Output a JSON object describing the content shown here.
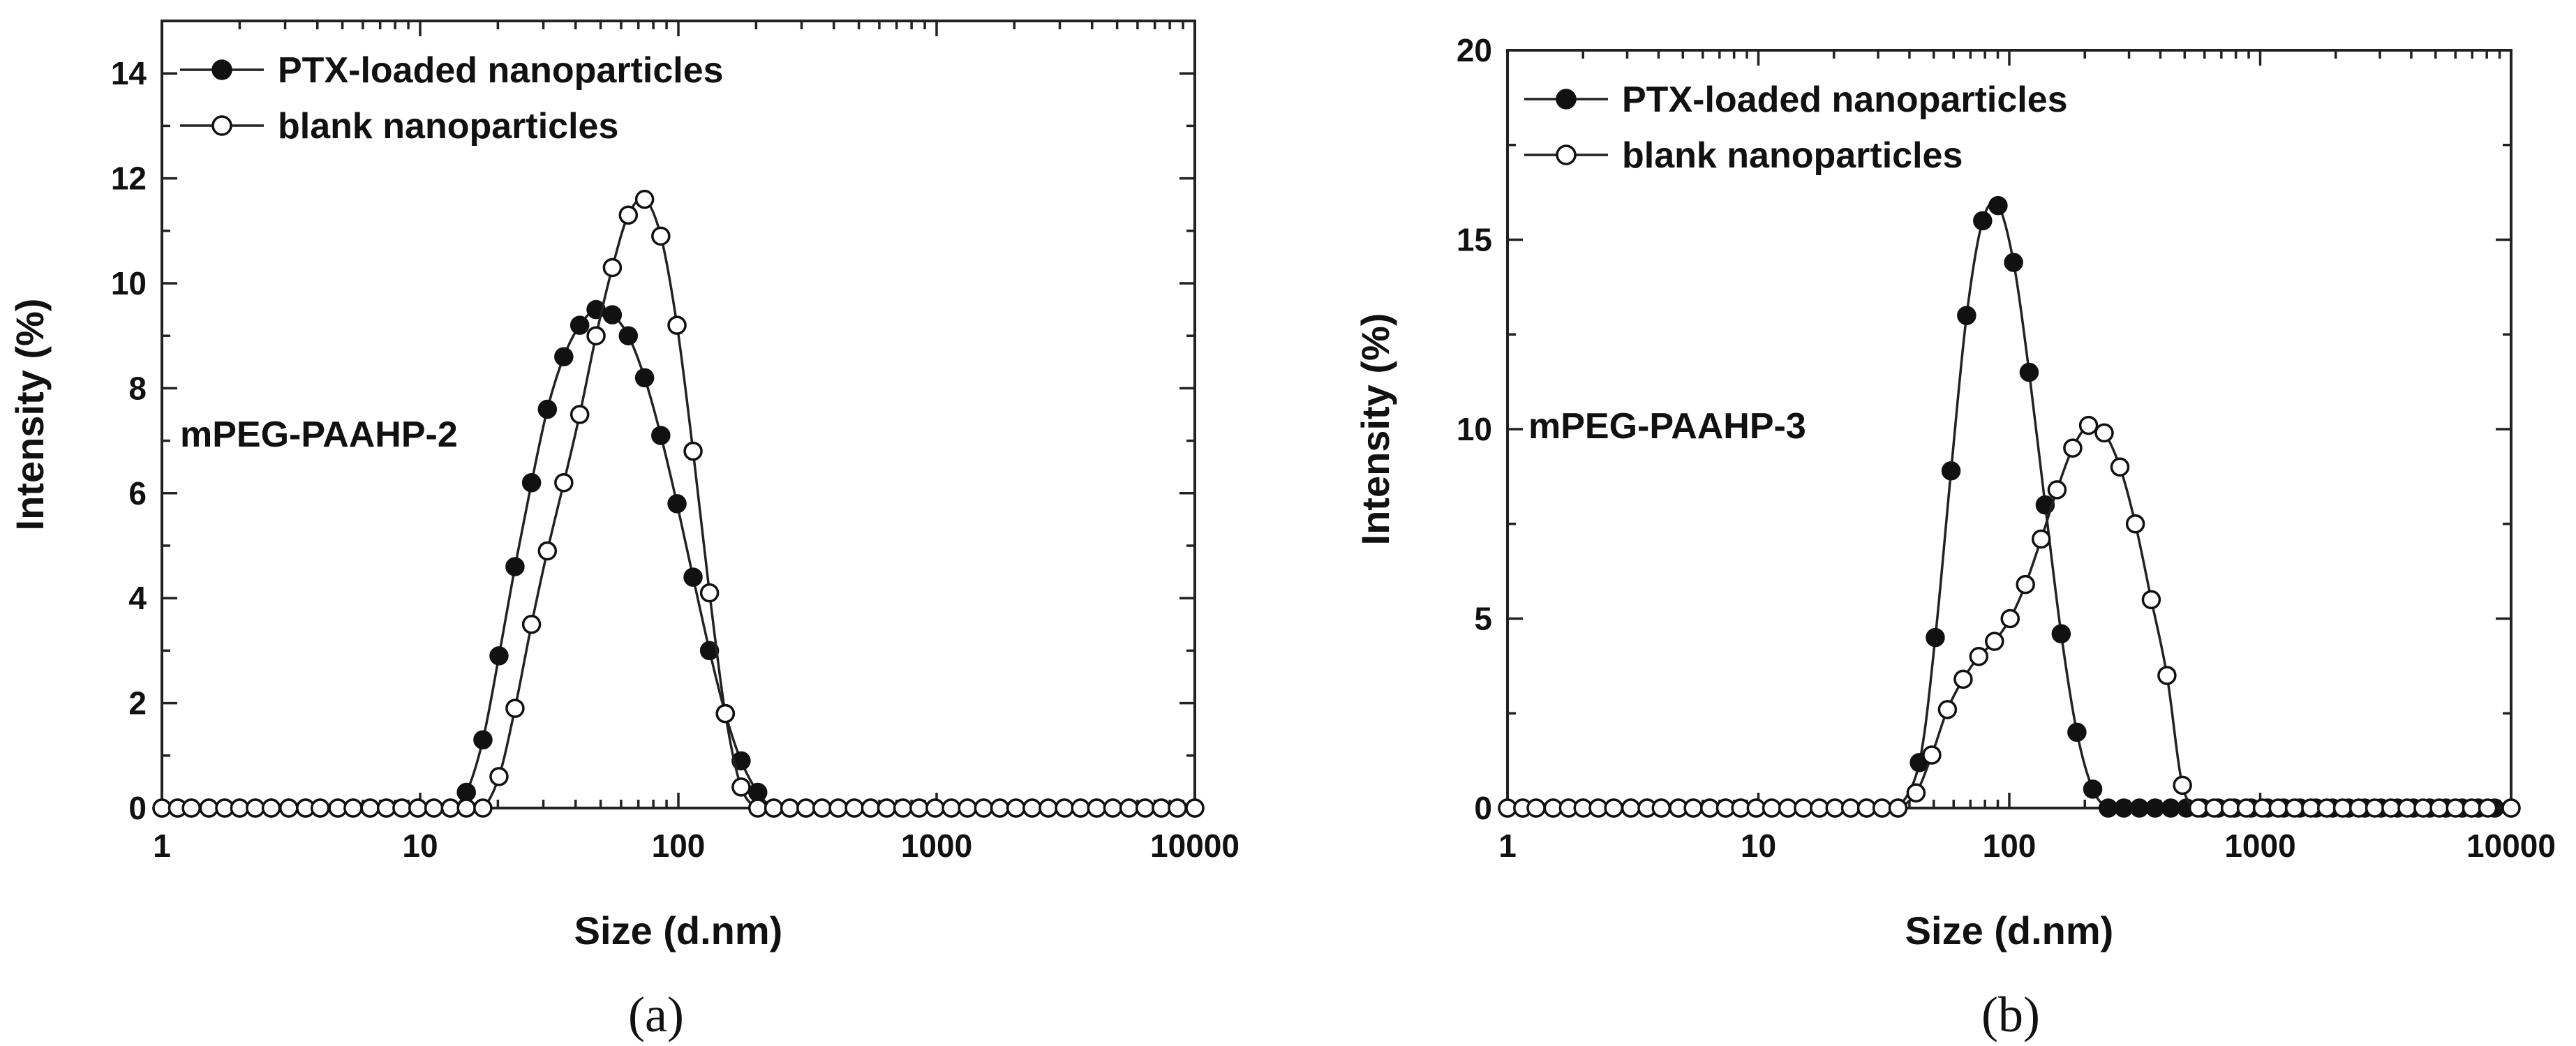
{
  "chart_data": [
    {
      "type": "line",
      "panel_label": "(a)",
      "annotation": "mPEG-PAAHP-2",
      "xlabel": "Size (d.nm)",
      "ylabel": "Intensity (%)",
      "xscale": "log",
      "xlim": [
        1,
        10000
      ],
      "ylim": [
        0,
        15
      ],
      "xticks": [
        1,
        10,
        100,
        1000,
        10000
      ],
      "xtick_labels": [
        "1",
        "10",
        "100",
        "1000",
        "10000"
      ],
      "yticks": [
        0,
        2,
        4,
        6,
        8,
        10,
        12,
        14
      ],
      "ytick_labels": [
        "0",
        "2",
        "4",
        "6",
        "8",
        "10",
        "12",
        "14"
      ],
      "legend_position": "top-left",
      "series": [
        {
          "name": "PTX-loaded nanoparticles",
          "marker": "filled-circle",
          "x": [
            1,
            1.15,
            1.3,
            1.52,
            1.75,
            2,
            2.3,
            2.65,
            3.1,
            3.6,
            4.1,
            4.8,
            5.5,
            6.4,
            7.4,
            8.5,
            9.8,
            11.3,
            13.1,
            15.1,
            17.5,
            20.2,
            23.3,
            27,
            31.1,
            36,
            41.5,
            48,
            55.5,
            64,
            74,
            85.5,
            98.8,
            114,
            132,
            152,
            175,
            203,
            234,
            270,
            312,
            360,
            416,
            480,
            555,
            641,
            740,
            855,
            987,
            1140,
            1317,
            1521,
            1757,
            2029,
            2343,
            2706,
            3125,
            3609,
            4168,
            4813,
            5559,
            6420,
            7415,
            8563,
            10000
          ],
          "values": [
            0,
            0,
            0,
            0,
            0,
            0,
            0,
            0,
            0,
            0,
            0,
            0,
            0,
            0,
            0,
            0,
            0,
            0,
            0,
            0.3,
            1.3,
            2.9,
            4.6,
            6.2,
            7.6,
            8.6,
            9.2,
            9.5,
            9.4,
            9.0,
            8.2,
            7.1,
            5.8,
            4.4,
            3.0,
            1.8,
            0.9,
            0.3,
            0,
            0,
            0,
            0,
            0,
            0,
            0,
            0,
            0,
            0,
            0,
            0,
            0,
            0,
            0,
            0,
            0,
            0,
            0,
            0,
            0,
            0,
            0,
            0,
            0,
            0,
            0
          ]
        },
        {
          "name": "blank nanoparticles",
          "marker": "open-circle",
          "x": [
            1,
            1.15,
            1.3,
            1.52,
            1.75,
            2,
            2.3,
            2.65,
            3.1,
            3.6,
            4.1,
            4.8,
            5.5,
            6.4,
            7.4,
            8.5,
            9.8,
            11.3,
            13.1,
            15.1,
            17.5,
            20.2,
            23.3,
            27,
            31.1,
            36,
            41.5,
            48,
            55.5,
            64,
            74,
            85.5,
            98.8,
            114,
            132,
            152,
            175,
            203,
            234,
            270,
            312,
            360,
            416,
            480,
            555,
            641,
            740,
            855,
            987,
            1140,
            1317,
            1521,
            1757,
            2029,
            2343,
            2706,
            3125,
            3609,
            4168,
            4813,
            5559,
            6420,
            7415,
            8563,
            10000
          ],
          "values": [
            0,
            0,
            0,
            0,
            0,
            0,
            0,
            0,
            0,
            0,
            0,
            0,
            0,
            0,
            0,
            0,
            0,
            0,
            0,
            0,
            0,
            0.6,
            1.9,
            3.5,
            4.9,
            6.2,
            7.5,
            9.0,
            10.3,
            11.3,
            11.6,
            10.9,
            9.2,
            6.8,
            4.1,
            1.8,
            0.4,
            0,
            0,
            0,
            0,
            0,
            0,
            0,
            0,
            0,
            0,
            0,
            0,
            0,
            0,
            0,
            0,
            0,
            0,
            0,
            0,
            0,
            0,
            0,
            0,
            0,
            0,
            0,
            0
          ]
        }
      ]
    },
    {
      "type": "line",
      "panel_label": "(b)",
      "annotation": "mPEG-PAAHP-3",
      "xlabel": "Size (d.nm)",
      "ylabel": "Intensity (%)",
      "xscale": "log",
      "xlim": [
        1,
        10000
      ],
      "ylim": [
        0,
        20
      ],
      "xticks": [
        1,
        10,
        100,
        1000,
        10000
      ],
      "xtick_labels": [
        "1",
        "10",
        "100",
        "1000",
        "10000"
      ],
      "yticks": [
        0,
        5,
        10,
        15,
        20
      ],
      "ytick_labels": [
        "0",
        "5",
        "10",
        "15",
        "20"
      ],
      "legend_position": "top-left",
      "series": [
        {
          "name": "PTX-loaded nanoparticles",
          "marker": "filled-circle",
          "x": [
            1,
            1.15,
            1.3,
            1.52,
            1.75,
            2,
            2.3,
            2.65,
            3.1,
            3.6,
            4.1,
            4.8,
            5.5,
            6.4,
            7.4,
            8.5,
            9.8,
            11.3,
            13.1,
            15.1,
            17.5,
            20.2,
            23.3,
            27,
            31.1,
            36,
            43.8,
            50.7,
            58.6,
            67.6,
            78.3,
            90.2,
            104,
            120,
            139,
            161,
            186,
            215,
            248,
            286,
            330,
            381,
            440,
            508,
            587,
            680,
            790,
            920,
            1070,
            1240,
            1440,
            1670,
            1940,
            2250,
            2610,
            3030,
            3520,
            4080,
            4740,
            5500,
            6380,
            7400,
            8600,
            10000
          ],
          "values": [
            0,
            0,
            0,
            0,
            0,
            0,
            0,
            0,
            0,
            0,
            0,
            0,
            0,
            0,
            0,
            0,
            0,
            0,
            0,
            0,
            0,
            0,
            0,
            0,
            0,
            0,
            1.2,
            4.5,
            8.9,
            13.0,
            15.5,
            15.9,
            14.4,
            11.5,
            8.0,
            4.6,
            2.0,
            0.5,
            0,
            0,
            0,
            0,
            0,
            0,
            0,
            0,
            0,
            0,
            0,
            0,
            0,
            0,
            0,
            0,
            0,
            0,
            0,
            0,
            0,
            0,
            0,
            0,
            0,
            0
          ]
        },
        {
          "name": "blank nanoparticles",
          "marker": "open-circle",
          "x": [
            1,
            1.15,
            1.3,
            1.52,
            1.75,
            2,
            2.3,
            2.65,
            3.1,
            3.6,
            4.1,
            4.8,
            5.5,
            6.4,
            7.4,
            8.5,
            9.8,
            11.3,
            13.1,
            15.1,
            17.5,
            20.2,
            23.3,
            27,
            31.1,
            36,
            42.5,
            49.1,
            56.7,
            65.5,
            75.6,
            87.3,
            100.8,
            116,
            134,
            155,
            179,
            207,
            239,
            276,
            318,
            368,
            425,
            490,
            566,
            655,
            760,
            880,
            1020,
            1180,
            1370,
            1590,
            1840,
            2130,
            2470,
            2860,
            3320,
            3850,
            4460,
            5170,
            6000,
            6960,
            8070,
            10000
          ],
          "values": [
            0,
            0,
            0,
            0,
            0,
            0,
            0,
            0,
            0,
            0,
            0,
            0,
            0,
            0,
            0,
            0,
            0,
            0,
            0,
            0,
            0,
            0,
            0,
            0,
            0,
            0,
            0.4,
            1.4,
            2.6,
            3.4,
            4.0,
            4.4,
            5.0,
            5.9,
            7.1,
            8.4,
            9.5,
            10.1,
            9.9,
            9.0,
            7.5,
            5.5,
            3.5,
            0.6,
            0,
            0,
            0,
            0,
            0,
            0,
            0,
            0,
            0,
            0,
            0,
            0,
            0,
            0,
            0,
            0,
            0,
            0,
            0,
            0
          ]
        }
      ]
    }
  ]
}
